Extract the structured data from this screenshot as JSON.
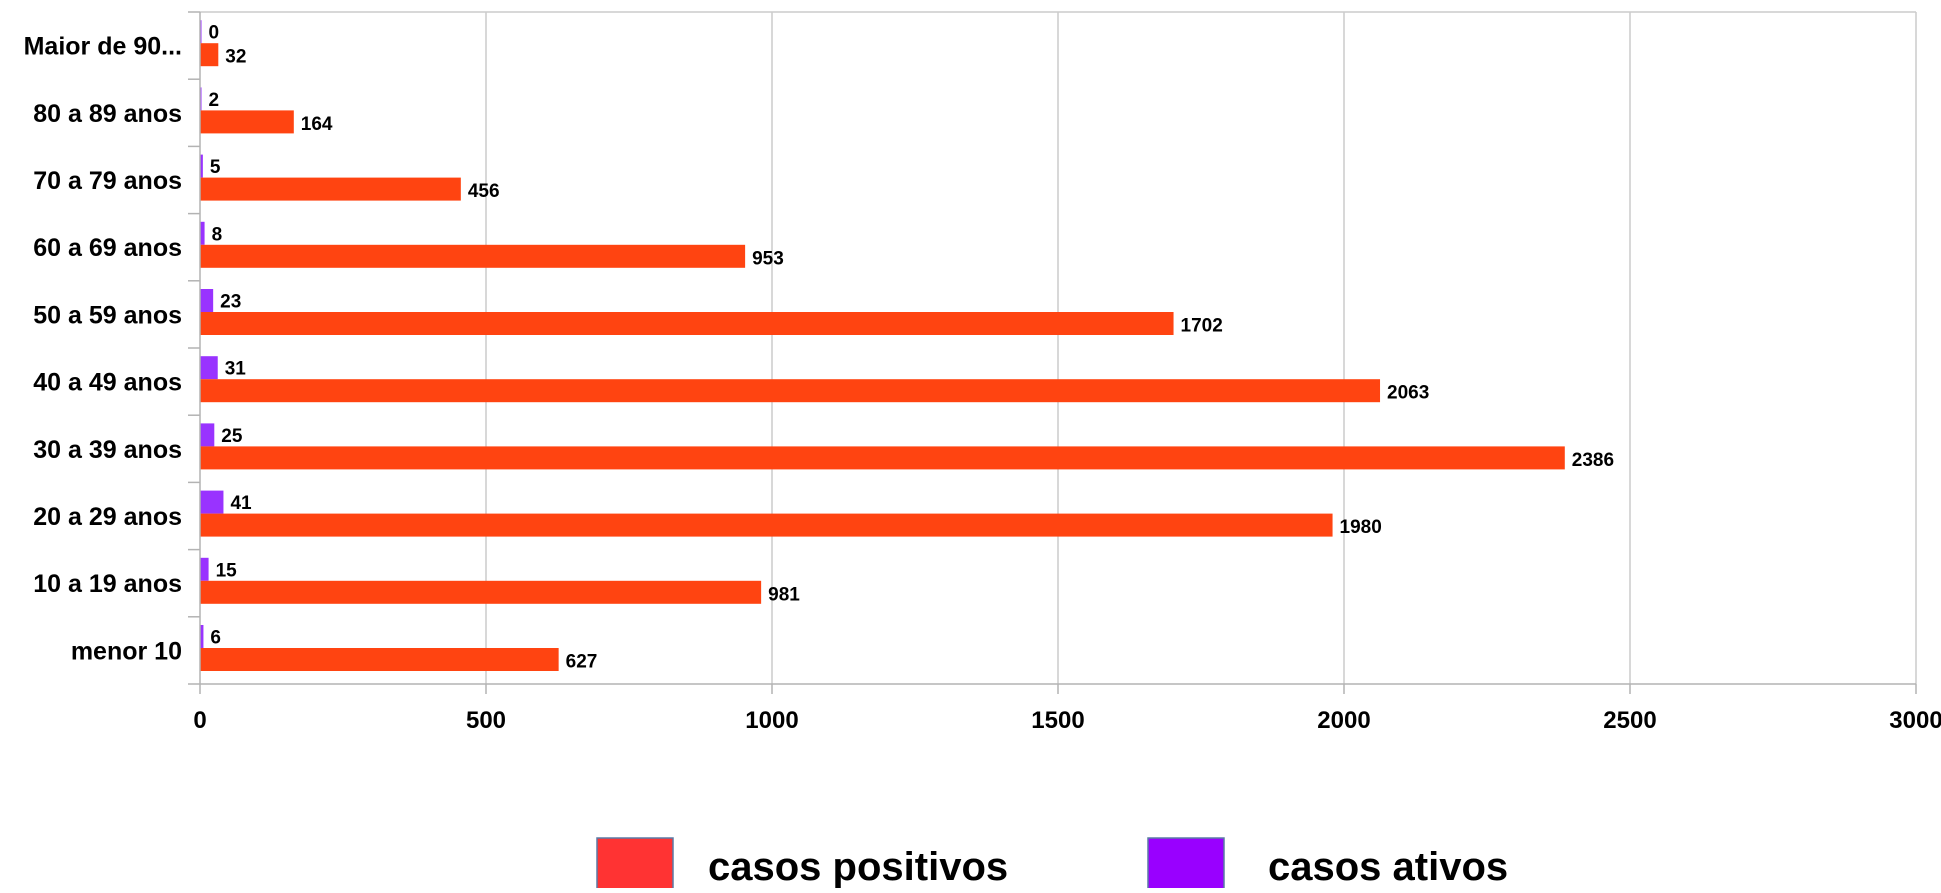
{
  "chart_data": {
    "type": "bar",
    "orientation": "horizontal",
    "categories": [
      "menor 10",
      "10 a 19 anos",
      "20 a 29 anos",
      "30 a 39 anos",
      "40 a 49 anos",
      "50 a 59 anos",
      "60 a 69 anos",
      "70 a 79 anos",
      "80 a 89 anos",
      "Maior de 90..."
    ],
    "series": [
      {
        "name": "casos positivos",
        "color": "#ff4411",
        "legend_color": "#ff3333",
        "values": [
          627,
          981,
          1980,
          2386,
          2063,
          1702,
          953,
          456,
          164,
          32
        ]
      },
      {
        "name": "casos ativos",
        "color": "#9933ff",
        "legend_color": "#9900ff",
        "values": [
          6,
          15,
          41,
          25,
          31,
          23,
          8,
          5,
          2,
          0
        ]
      }
    ],
    "xlim": [
      0,
      3000
    ],
    "xticks": [
      0,
      500,
      1000,
      1500,
      2000,
      2500,
      3000
    ],
    "grid": true,
    "legend_position": "bottom",
    "data_labels": true
  }
}
